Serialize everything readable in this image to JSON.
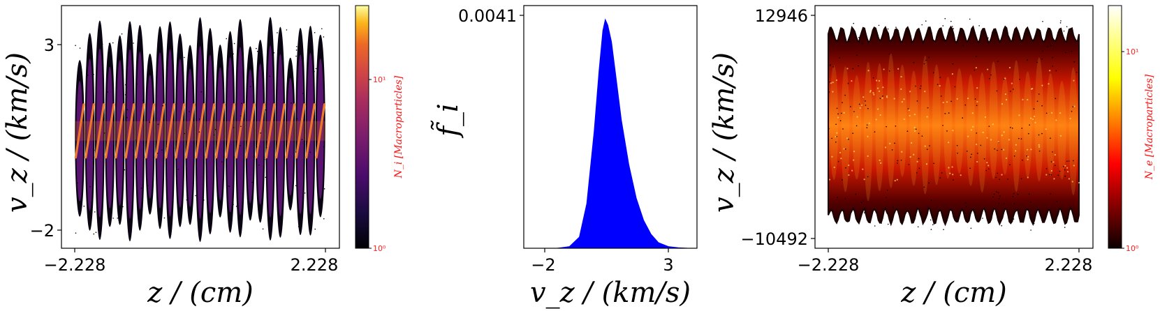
{
  "chart_data": [
    {
      "type": "heatmap",
      "panel": "ion-phase-space",
      "xlabel": "z / (cm)",
      "ylabel": "v_z / (km/s)",
      "xticks": [
        "−2.228",
        "2.228"
      ],
      "yticks": [
        "3",
        "−2"
      ],
      "xlim": [
        -2.228,
        2.228
      ],
      "ylim": [
        -2.6,
        3.5
      ],
      "colormap": "inferno",
      "colorbar": {
        "label": "N_i [Macroparticles]",
        "ticks": [
          "10⁰",
          "10¹"
        ],
        "scale": "log"
      },
      "wave_periods": 25,
      "y_center": 0.35,
      "y_amplitude_max": 1.6
    },
    {
      "type": "area",
      "panel": "ion-distribution",
      "xlabel": "v_z / (km/s)",
      "ylabel": "f̃_i",
      "xticks": [
        "−2",
        "3"
      ],
      "yticks": [
        "0.0041"
      ],
      "xlim": [
        -2.2,
        4.0
      ],
      "ylim": [
        0,
        0.0043
      ],
      "color": "#0000ff",
      "peak": {
        "x": 0.45,
        "y": 0.0041
      },
      "x": [
        -1.5,
        -1.0,
        -0.6,
        -0.3,
        0.0,
        0.2,
        0.35,
        0.45,
        0.55,
        0.7,
        0.9,
        1.1,
        1.4,
        1.7,
        2.0,
        2.3,
        2.6,
        3.0,
        3.4,
        3.8
      ],
      "y": [
        0.0,
        3e-05,
        0.0002,
        0.0008,
        0.0021,
        0.0032,
        0.0039,
        0.0041,
        0.004,
        0.0037,
        0.003,
        0.0023,
        0.0015,
        0.0009,
        0.0005,
        0.00025,
        0.0001,
        3e-05,
        1e-05,
        0.0
      ]
    },
    {
      "type": "heatmap",
      "panel": "electron-phase-space",
      "xlabel": "z / (cm)",
      "ylabel": "v_z / (km/s)",
      "xticks": [
        "−2.228",
        "2.228"
      ],
      "yticks": [
        "12946",
        "−10492"
      ],
      "xlim": [
        -2.228,
        2.228
      ],
      "ylim": [
        -10492,
        12946
      ],
      "colormap": "hot",
      "colorbar": {
        "label": "N_e [Macroparticles]",
        "ticks": [
          "10⁰",
          "10¹"
        ],
        "scale": "log"
      },
      "wave_periods": 23
    }
  ]
}
